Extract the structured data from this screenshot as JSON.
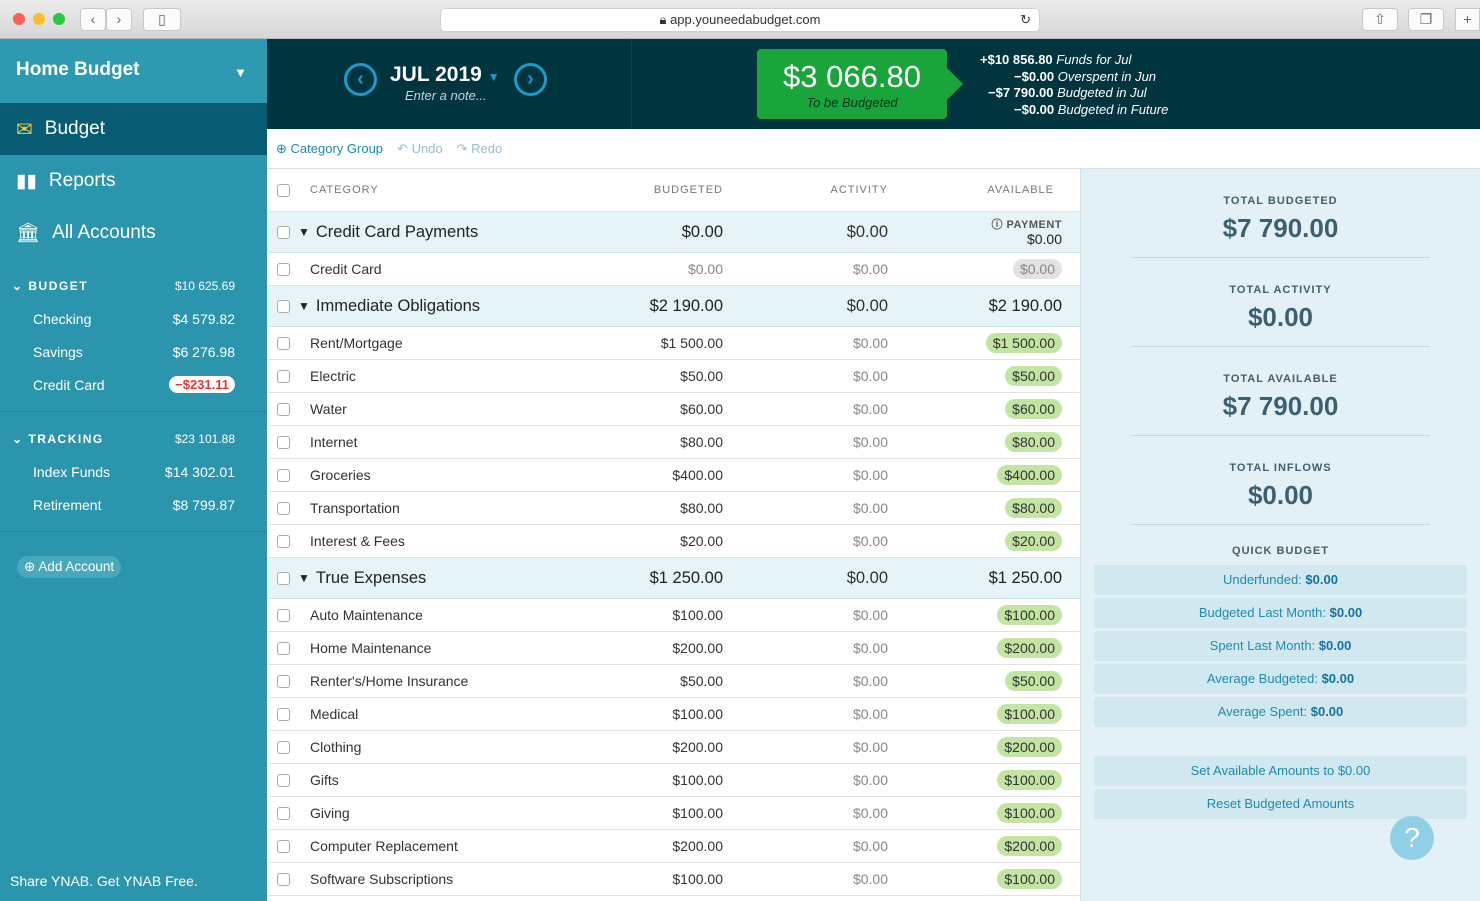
{
  "browser": {
    "url": "app.youneedabudget.com"
  },
  "sidebar": {
    "budget_name": "Home Budget",
    "nav": [
      {
        "label": "Budget",
        "icon": "envelope-icon"
      },
      {
        "label": "Reports",
        "icon": "bar-chart-icon"
      },
      {
        "label": "All Accounts",
        "icon": "bank-icon"
      }
    ],
    "groups": [
      {
        "name": "BUDGET",
        "total": "$10 625.69",
        "accounts": [
          {
            "name": "Checking",
            "balance": "$4 579.82"
          },
          {
            "name": "Savings",
            "balance": "$6 276.98"
          },
          {
            "name": "Credit Card",
            "balance": "−$231.11"
          }
        ]
      },
      {
        "name": "TRACKING",
        "total": "$23 101.88",
        "accounts": [
          {
            "name": "Index Funds",
            "balance": "$14 302.01"
          },
          {
            "name": "Retirement",
            "balance": "$8 799.87"
          }
        ]
      }
    ],
    "add_account": "Add Account",
    "footer": "Share YNAB. Get YNAB Free."
  },
  "header": {
    "month": "JUL 2019",
    "note_placeholder": "Enter a note...",
    "to_be_budgeted": "$3 066.80",
    "to_be_budgeted_label": "To be Budgeted",
    "funds": [
      {
        "amount": "+$10 856.80",
        "label": "Funds for Jul"
      },
      {
        "amount": "−$0.00",
        "label": "Overspent in Jun"
      },
      {
        "amount": "−$7 790.00",
        "label": "Budgeted in Jul"
      },
      {
        "amount": "−$0.00",
        "label": "Budgeted in Future"
      }
    ]
  },
  "toolbar": {
    "category_group": "Category Group",
    "undo": "Undo",
    "redo": "Redo"
  },
  "table": {
    "headers": {
      "category": "CATEGORY",
      "budgeted": "BUDGETED",
      "activity": "ACTIVITY",
      "available": "AVAILABLE"
    },
    "payment_label": "PAYMENT",
    "rows": [
      {
        "type": "group",
        "name": "Credit Card Payments",
        "budgeted": "$0.00",
        "activity": "$0.00",
        "available": "$0.00",
        "payment": true
      },
      {
        "type": "cat",
        "name": "Credit Card",
        "budgeted": "$0.00",
        "activity": "$0.00",
        "available": "$0.00",
        "zero": true
      },
      {
        "type": "group",
        "name": "Immediate Obligations",
        "budgeted": "$2 190.00",
        "activity": "$0.00",
        "available": "$2 190.00"
      },
      {
        "type": "cat",
        "name": "Rent/Mortgage",
        "budgeted": "$1 500.00",
        "activity": "$0.00",
        "available": "$1 500.00"
      },
      {
        "type": "cat",
        "name": "Electric",
        "budgeted": "$50.00",
        "activity": "$0.00",
        "available": "$50.00"
      },
      {
        "type": "cat",
        "name": "Water",
        "budgeted": "$60.00",
        "activity": "$0.00",
        "available": "$60.00"
      },
      {
        "type": "cat",
        "name": "Internet",
        "budgeted": "$80.00",
        "activity": "$0.00",
        "available": "$80.00"
      },
      {
        "type": "cat",
        "name": "Groceries",
        "budgeted": "$400.00",
        "activity": "$0.00",
        "available": "$400.00"
      },
      {
        "type": "cat",
        "name": "Transportation",
        "budgeted": "$80.00",
        "activity": "$0.00",
        "available": "$80.00"
      },
      {
        "type": "cat",
        "name": "Interest & Fees",
        "budgeted": "$20.00",
        "activity": "$0.00",
        "available": "$20.00"
      },
      {
        "type": "group",
        "name": "True Expenses",
        "budgeted": "$1 250.00",
        "activity": "$0.00",
        "available": "$1 250.00"
      },
      {
        "type": "cat",
        "name": "Auto Maintenance",
        "budgeted": "$100.00",
        "activity": "$0.00",
        "available": "$100.00"
      },
      {
        "type": "cat",
        "name": "Home Maintenance",
        "budgeted": "$200.00",
        "activity": "$0.00",
        "available": "$200.00"
      },
      {
        "type": "cat",
        "name": "Renter's/Home Insurance",
        "budgeted": "$50.00",
        "activity": "$0.00",
        "available": "$50.00"
      },
      {
        "type": "cat",
        "name": "Medical",
        "budgeted": "$100.00",
        "activity": "$0.00",
        "available": "$100.00"
      },
      {
        "type": "cat",
        "name": "Clothing",
        "budgeted": "$200.00",
        "activity": "$0.00",
        "available": "$200.00"
      },
      {
        "type": "cat",
        "name": "Gifts",
        "budgeted": "$100.00",
        "activity": "$0.00",
        "available": "$100.00"
      },
      {
        "type": "cat",
        "name": "Giving",
        "budgeted": "$100.00",
        "activity": "$0.00",
        "available": "$100.00"
      },
      {
        "type": "cat",
        "name": "Computer Replacement",
        "budgeted": "$200.00",
        "activity": "$0.00",
        "available": "$200.00"
      },
      {
        "type": "cat",
        "name": "Software Subscriptions",
        "budgeted": "$100.00",
        "activity": "$0.00",
        "available": "$100.00"
      }
    ]
  },
  "inspector": {
    "totals": [
      {
        "label": "TOTAL BUDGETED",
        "value": "$7 790.00"
      },
      {
        "label": "TOTAL ACTIVITY",
        "value": "$0.00"
      },
      {
        "label": "TOTAL AVAILABLE",
        "value": "$7 790.00"
      },
      {
        "label": "TOTAL INFLOWS",
        "value": "$0.00"
      }
    ],
    "quick_budget_title": "QUICK BUDGET",
    "quick": [
      {
        "label": "Underfunded:",
        "value": "$0.00"
      },
      {
        "label": "Budgeted Last Month:",
        "value": "$0.00"
      },
      {
        "label": "Spent Last Month:",
        "value": "$0.00"
      },
      {
        "label": "Average Budgeted:",
        "value": "$0.00"
      },
      {
        "label": "Average Spent:",
        "value": "$0.00"
      }
    ],
    "actions": [
      "Set Available Amounts to $0.00",
      "Reset Budgeted Amounts"
    ]
  },
  "help": "?"
}
